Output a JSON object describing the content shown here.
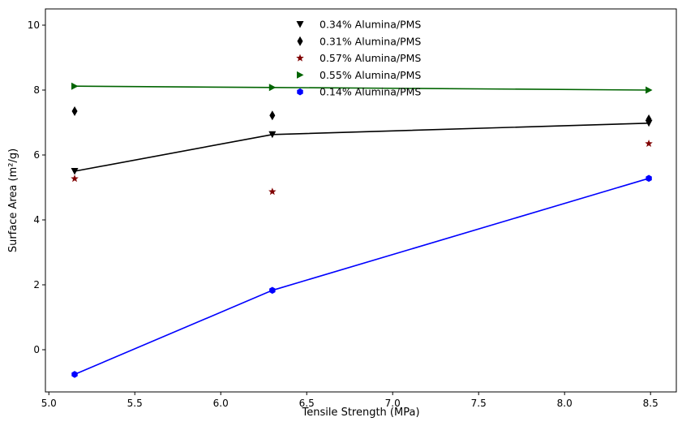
{
  "chart_data": {
    "type": "scatter",
    "title": "",
    "xlabel": "Tensile Strength (MPa)",
    "ylabel": "Surface Area (m²/g)",
    "xlim": [
      4.98,
      8.65
    ],
    "ylim": [
      -1.3,
      10.5
    ],
    "xticks": [
      5.0,
      5.5,
      6.0,
      6.5,
      7.0,
      7.5,
      8.0,
      8.5
    ],
    "xtick_labels": [
      "5.0",
      "5.5",
      "6.0",
      "6.5",
      "7.0",
      "7.5",
      "8.0",
      "8.5"
    ],
    "yticks": [
      0,
      2,
      4,
      6,
      8,
      10
    ],
    "ytick_labels": [
      "0",
      "2",
      "4",
      "6",
      "8",
      "10"
    ],
    "grid": false,
    "legend_position": "top-center",
    "series": [
      {
        "name": "0.34% Alumina/PMS",
        "marker": "triangle-down",
        "color": "#000000",
        "line": true,
        "x": [
          5.15,
          6.3,
          8.49
        ],
        "y": [
          5.5,
          6.63,
          6.98
        ]
      },
      {
        "name": "0.31% Alumina/PMS",
        "marker": "thin-diamond",
        "color": "#000000",
        "line": false,
        "x": [
          5.15,
          6.3,
          8.49
        ],
        "y": [
          7.35,
          7.22,
          7.1
        ]
      },
      {
        "name": "0.57% Alumina/PMS",
        "marker": "star",
        "color": "#800000",
        "line": false,
        "x": [
          5.15,
          6.3,
          8.49
        ],
        "y": [
          5.27,
          4.87,
          6.35
        ]
      },
      {
        "name": "0.55% Alumina/PMS",
        "marker": "triangle-right",
        "color": "#006400",
        "line": true,
        "x": [
          5.15,
          6.3,
          8.49
        ],
        "y": [
          8.12,
          8.08,
          8.0
        ]
      },
      {
        "name": "0.14% Alumina/PMS",
        "marker": "hexagon",
        "color": "#0000ff",
        "line": true,
        "x": [
          5.15,
          6.3,
          8.49
        ],
        "y": [
          -0.76,
          1.83,
          5.28
        ]
      }
    ]
  }
}
